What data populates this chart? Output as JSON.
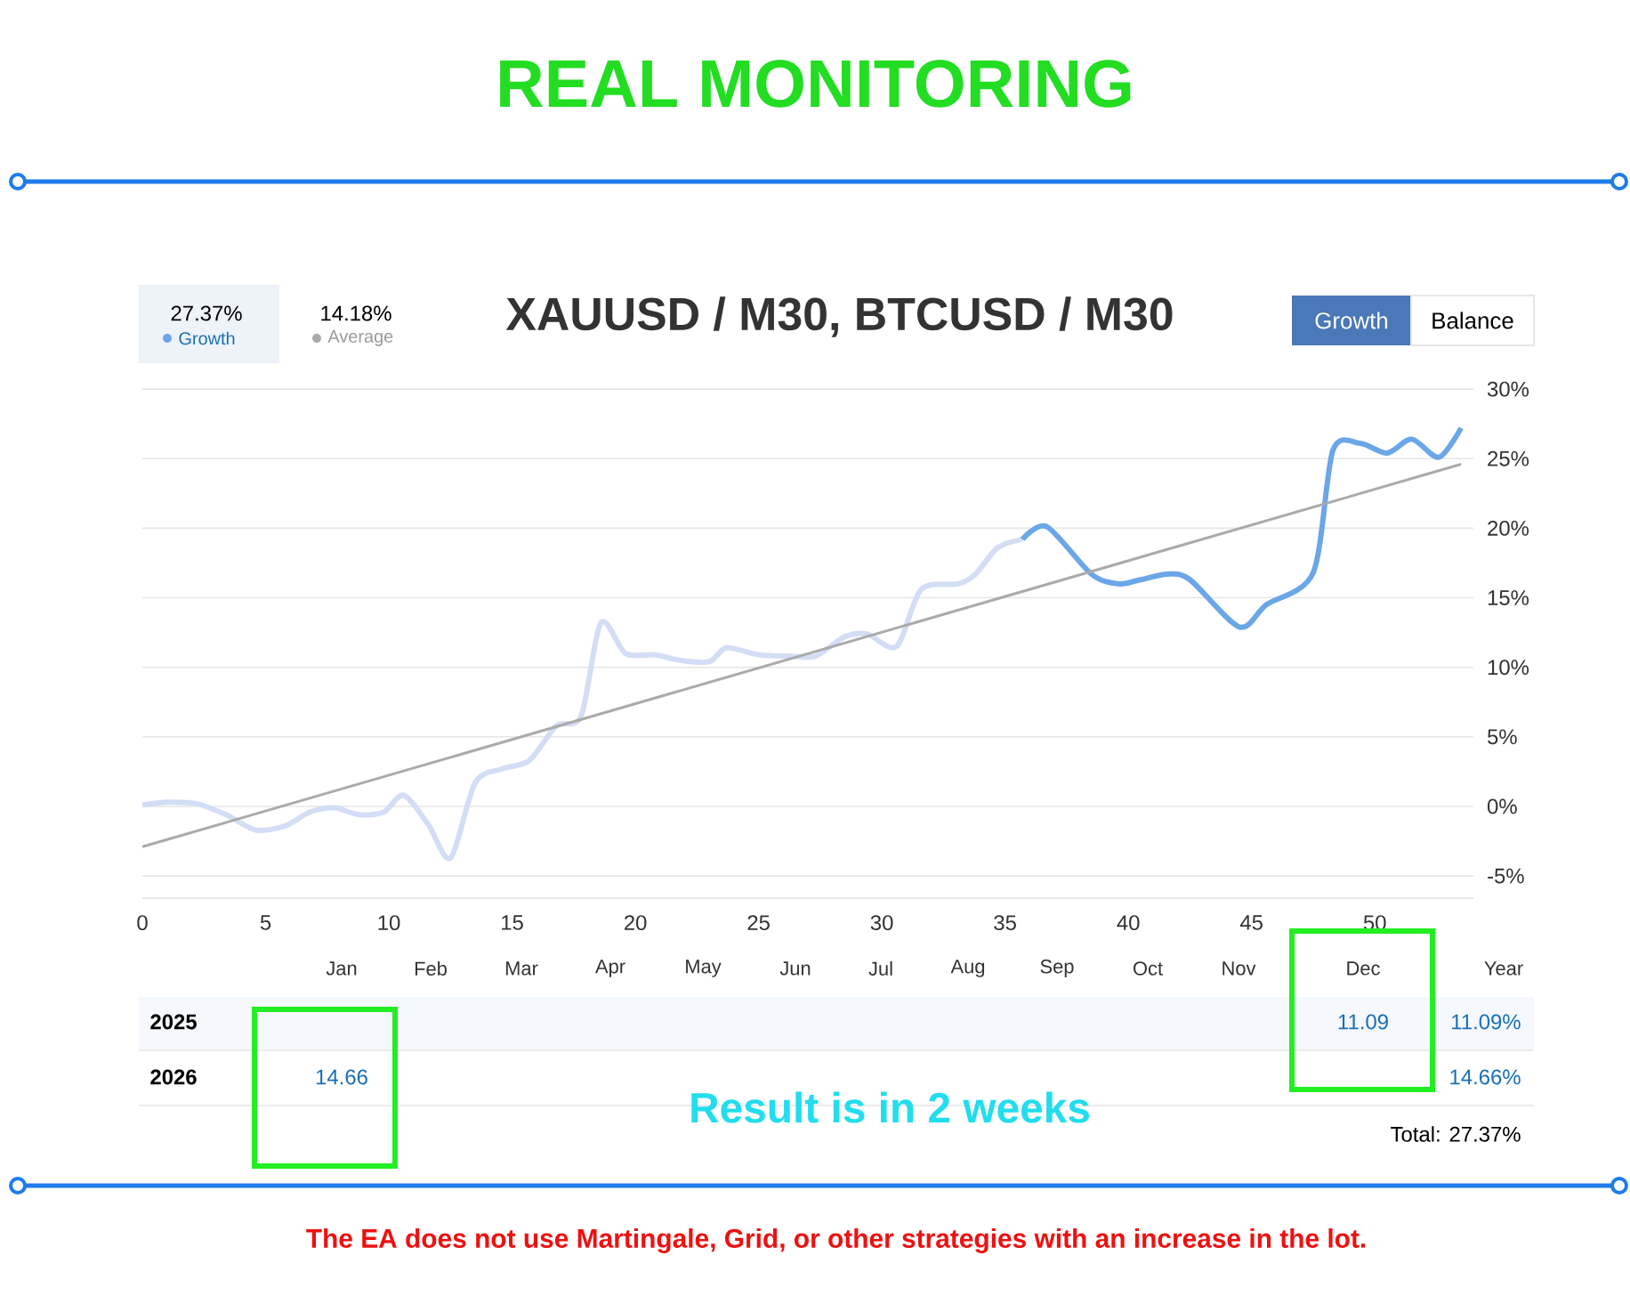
{
  "chart_data": {
    "type": "line",
    "title": "REAL MONITORING",
    "subtitle": "XAUUSD / M30, BTCUSD / M30",
    "xlim": [
      0,
      54
    ],
    "xticks": [
      0,
      5,
      10,
      15,
      20,
      25,
      30,
      35,
      40,
      45,
      50
    ],
    "ylim": [
      -6.6,
      30
    ],
    "yticks": [
      {
        "value": -5,
        "label": "-5%"
      },
      {
        "value": 0,
        "label": "0%"
      },
      {
        "value": 5,
        "label": "5%"
      },
      {
        "value": 10,
        "label": "10%"
      },
      {
        "value": 15,
        "label": "15%"
      },
      {
        "value": 20,
        "label": "20%"
      },
      {
        "value": 25,
        "label": "25%"
      },
      {
        "value": 30,
        "label": "30%"
      }
    ],
    "grid": "y",
    "legend": "top left",
    "marker": "none",
    "series": [
      {
        "color": "#d3ddf5",
        "x": [
          0,
          1,
          2.2,
          3.4,
          4.6,
          5.8,
          6.8,
          7.8,
          8.8,
          9.8,
          10.6,
          11.6,
          12.5,
          13.5,
          14.6,
          15.7,
          16.8,
          17.8,
          18.6,
          19.6,
          20.8,
          21.8,
          23,
          23.7,
          25,
          26.3,
          27.3,
          28.5,
          29.4,
          30.6,
          31.6,
          33.1,
          33.8,
          34.7,
          35.7
        ],
        "values": [
          0.1,
          0.3,
          0.2,
          -0.6,
          -1.7,
          -1.4,
          -0.4,
          -0.1,
          -0.6,
          -0.4,
          0.8,
          -1.3,
          -3.7,
          1.7,
          2.7,
          3.3,
          5.8,
          6.5,
          13.2,
          11.0,
          10.9,
          10.5,
          10.4,
          11.4,
          10.9,
          10.8,
          10.8,
          12.2,
          12.4,
          11.5,
          15.6,
          16.0,
          16.7,
          18.6,
          19.2
        ]
      },
      {
        "name": "Growth",
        "color": "#6aa6e8",
        "x": [
          35.7,
          36.7,
          38.5,
          39.6,
          40.5,
          41.6,
          42.5,
          44.5,
          45.6,
          47.5,
          48.3,
          49.4,
          50.5,
          51.5,
          52.6,
          53.5
        ],
        "values": [
          19.2,
          20.1,
          16.7,
          16.0,
          16.3,
          16.7,
          16.3,
          12.9,
          14.5,
          16.8,
          25.6,
          26.1,
          25.4,
          26.4,
          25.1,
          27.2
        ]
      },
      {
        "name": "Average",
        "color": "#aaaaaa",
        "x": [
          0,
          53.5
        ],
        "values": [
          -2.9,
          24.6
        ]
      }
    ],
    "annotations": [
      "27.37%",
      "14.18%",
      "Growth",
      "Balance",
      "Jan",
      "Feb",
      "Mar",
      "Apr",
      "May",
      "Jun",
      "Jul",
      "Aug",
      "Sep",
      "Oct",
      "Nov",
      "Dec",
      "Year",
      "2025",
      "11.09",
      "11.09%",
      "2026",
      "14.66",
      "14.66%",
      "Total: 27.37%",
      "Result is in 2 weeks",
      "The EA does not use Martingale, Grid, or other strategies with an increase in the lot."
    ]
  }
}
